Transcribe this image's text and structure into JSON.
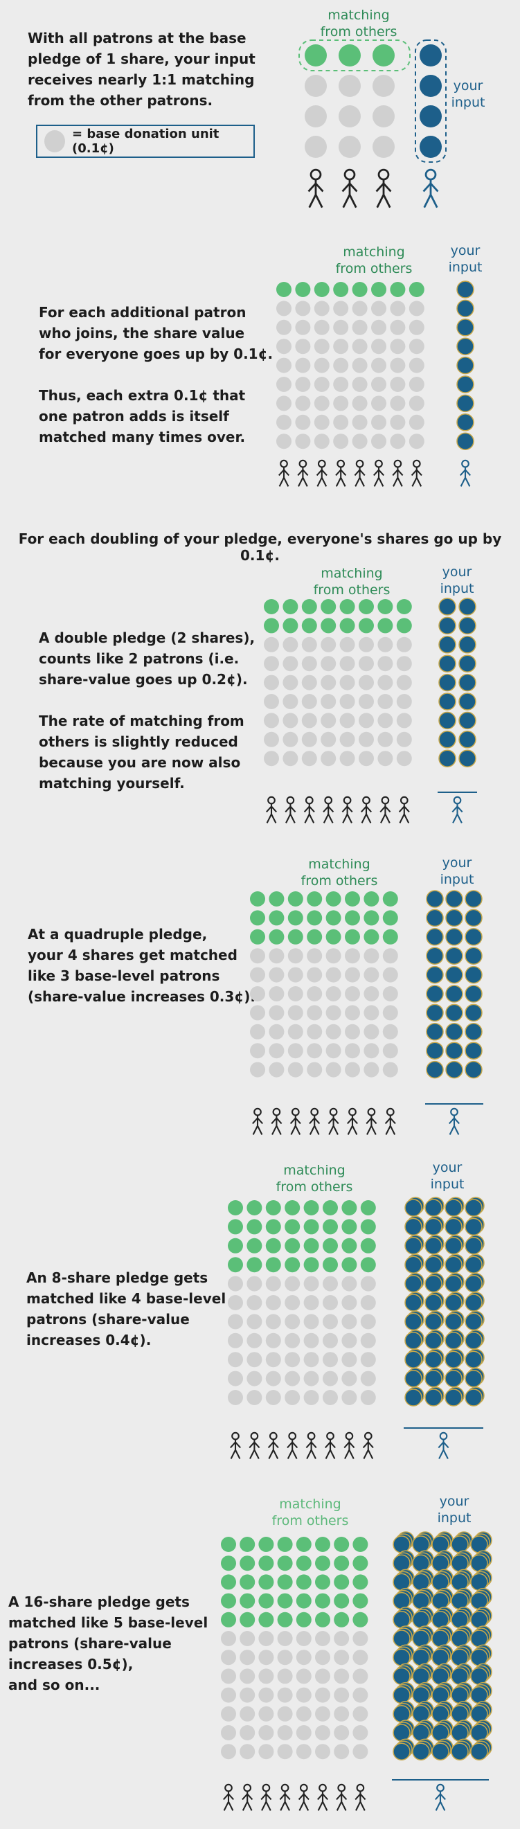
{
  "colors": {
    "green": "#5bbf78",
    "gray": "#d0d0d0",
    "blue": "#1d5f8a",
    "bluedot": "#1a5f88",
    "gold": "#c8a84a",
    "text": "#1c1c1c"
  },
  "intro": {
    "text": "With all patrons at the base\npledge of 1 share, your input\nreceives nearly 1:1 matching\nfrom the other patrons.",
    "legend": "= base donation unit (0.1¢)",
    "matching_label": "matching\nfrom others",
    "your_input_label": "your\ninput"
  },
  "panels": [
    {
      "id": "p1",
      "text": "For each additional patron\nwho joins, the share value\nfor everyone goes up by 0.1¢.\n\nThus, each extra 0.1¢ that\none patron adds is itself\nmatched many times over.",
      "matching_label": "matching\nfrom others",
      "your_input_label": "your\ninput",
      "green_rows": 1,
      "pledge_shares": 1
    },
    {
      "id": "p2",
      "text": "A double pledge (2 shares),\ncounts like 2 patrons (i.e.\nshare-value goes up 0.2¢).\n\nThe rate of matching from\nothers is slightly reduced\nbecause you are now also\nmatching yourself.",
      "matching_label": "matching\nfrom others",
      "your_input_label": "your\ninput",
      "green_rows": 2,
      "pledge_shares": 2
    },
    {
      "id": "p3",
      "text": "At a quadruple pledge,\nyour 4 shares get matched\nlike 3 base-level patrons\n(share-value increases 0.3¢).",
      "matching_label": "matching\nfrom others",
      "your_input_label": "your\ninput",
      "green_rows": 3,
      "pledge_shares": 4
    },
    {
      "id": "p4",
      "text": "An 8-share pledge gets\nmatched like 4 base-level\npatrons (share-value\nincreases 0.4¢).",
      "matching_label": "matching\nfrom others",
      "your_input_label": "your\ninput",
      "green_rows": 4,
      "pledge_shares": 8
    },
    {
      "id": "p5",
      "text": "A 16-share pledge gets\nmatched like 5 base-level\npatrons (share-value\nincreases 0.5¢),\nand so on...",
      "matching_label": "matching\nfrom others",
      "your_input_label": "your\ninput",
      "green_rows": 5,
      "pledge_shares": 16
    }
  ],
  "headline": "For each doubling of your pledge, everyone's shares go up by 0.1¢."
}
